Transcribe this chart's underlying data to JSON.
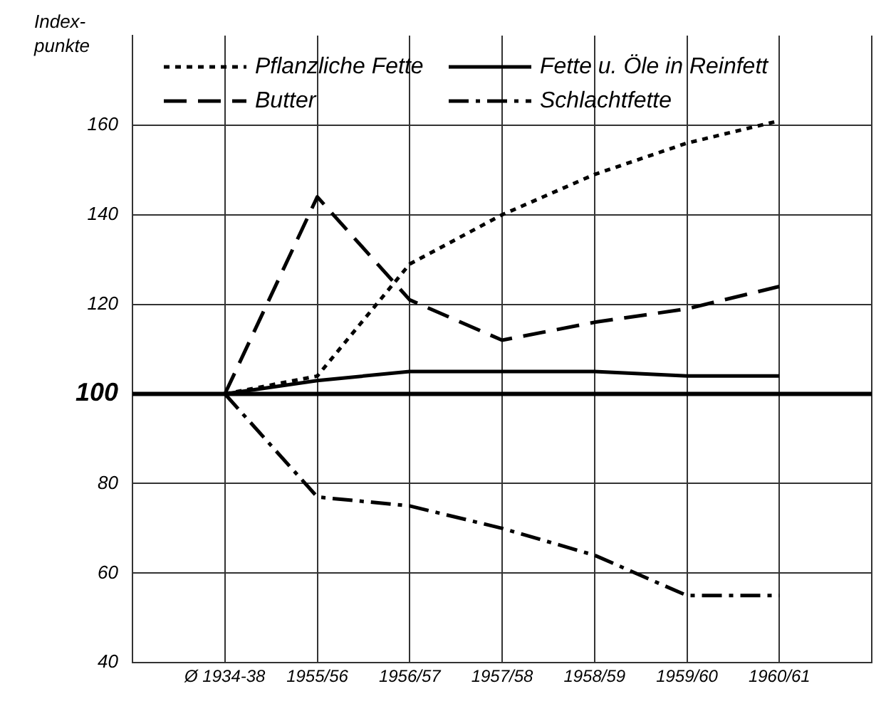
{
  "chart_data": {
    "type": "line",
    "ylabel": "Index- punkte",
    "categories": [
      "Ø 1934-38",
      "1955/56",
      "1956/57",
      "1957/58",
      "1958/59",
      "1959/60",
      "1960/61"
    ],
    "series": [
      {
        "name": "Pflanzliche Fette",
        "color": "#000000",
        "line_style": "dotted",
        "values": [
          100,
          104,
          129,
          140,
          149,
          156,
          161
        ]
      },
      {
        "name": "Fette u. Öle in Reinfett",
        "color": "#000000",
        "line_style": "solid",
        "values": [
          100,
          103,
          105,
          105,
          105,
          104,
          104
        ]
      },
      {
        "name": "Butter",
        "color": "#000000",
        "line_style": "dashed",
        "values": [
          100,
          144,
          121,
          112,
          116,
          119,
          124
        ]
      },
      {
        "name": "Schlachtfette",
        "color": "#000000",
        "line_style": "dashdot",
        "values": [
          100,
          77,
          75,
          70,
          64,
          55,
          55
        ]
      }
    ],
    "ylim": [
      40,
      180
    ],
    "yticks": [
      40,
      60,
      80,
      100,
      120,
      140,
      160
    ],
    "ref_lines": [
      {
        "axis": "y",
        "value": 100,
        "color": "#000000"
      }
    ],
    "grid": true,
    "legend": "top",
    "marker": "none"
  }
}
